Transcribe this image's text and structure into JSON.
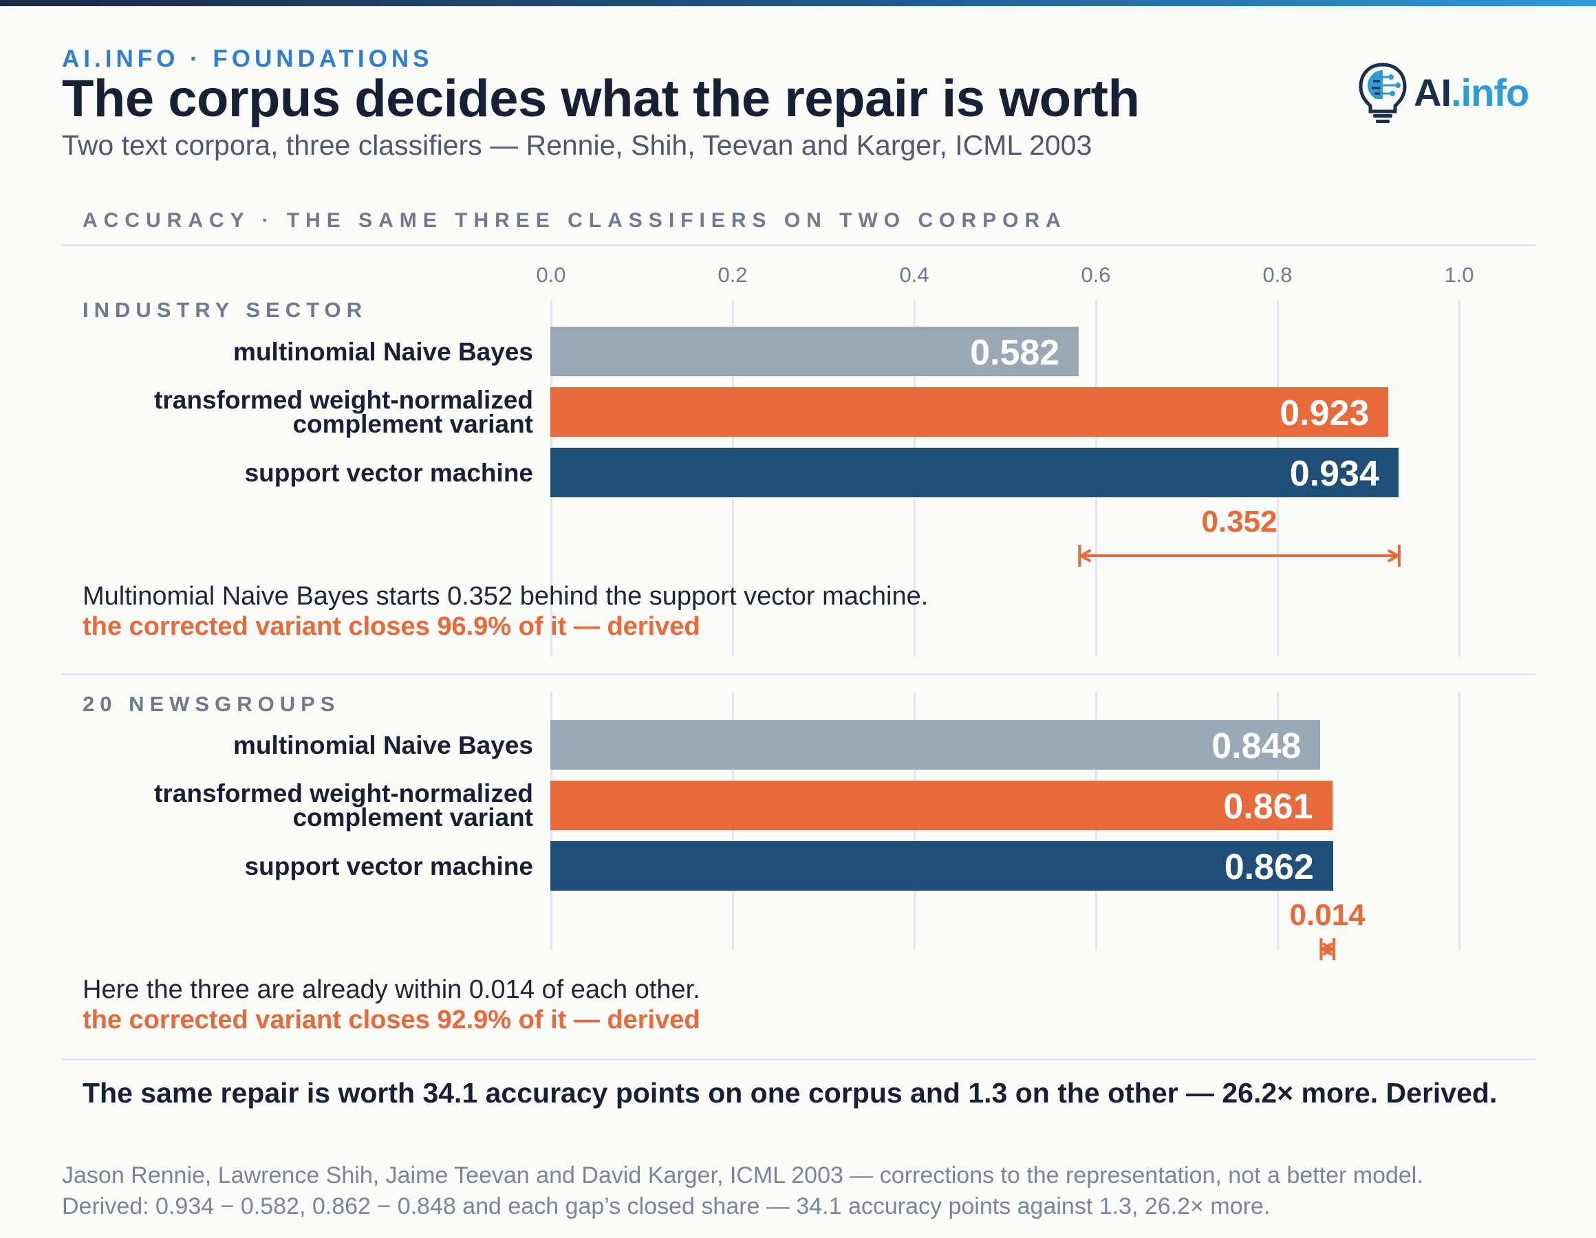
{
  "header": {
    "kicker": "AI.INFO · FOUNDATIONS",
    "title": "The corpus decides what the repair is worth",
    "subtitle": "Two text corpora, three classifiers — Rennie, Shih, Teevan and Karger, ICML 2003",
    "logo_text_main": "AI",
    "logo_text_accent": ".info"
  },
  "chart_data": {
    "type": "bar",
    "orientation": "horizontal",
    "title": "ACCURACY · THE SAME THREE CLASSIFIERS ON TWO CORPORA",
    "xlim": [
      0,
      1
    ],
    "ticks": [
      "0.0",
      "0.2",
      "0.4",
      "0.6",
      "0.8",
      "1.0"
    ],
    "grid": true,
    "groups": [
      {
        "name": "INDUSTRY SECTOR",
        "bars": [
          {
            "label_lines": [
              "multinomial Naive Bayes"
            ],
            "value": 0.582,
            "value_label": "0.582",
            "color": "#9aa7b4"
          },
          {
            "label_lines": [
              "transformed weight-normalized",
              "complement variant"
            ],
            "value": 0.923,
            "value_label": "0.923",
            "color": "#e8693a"
          },
          {
            "label_lines": [
              "support vector machine"
            ],
            "value": 0.934,
            "value_label": "0.934",
            "color": "#1f4e78"
          }
        ],
        "gap": {
          "from": 0.582,
          "to": 0.934,
          "label": "0.352"
        },
        "note": "Multinomial Naive Bayes starts 0.352 behind the support vector machine.",
        "note_derived": "the corrected variant closes 96.9% of it — derived"
      },
      {
        "name": "20 NEWSGROUPS",
        "bars": [
          {
            "label_lines": [
              "multinomial Naive Bayes"
            ],
            "value": 0.848,
            "value_label": "0.848",
            "color": "#9aa7b4"
          },
          {
            "label_lines": [
              "transformed weight-normalized",
              "complement variant"
            ],
            "value": 0.861,
            "value_label": "0.861",
            "color": "#e8693a"
          },
          {
            "label_lines": [
              "support vector machine"
            ],
            "value": 0.862,
            "value_label": "0.862",
            "color": "#1f4e78"
          }
        ],
        "gap": {
          "from": 0.848,
          "to": 0.862,
          "label": "0.014"
        },
        "note": "Here the three are already within 0.014 of each other.",
        "note_derived": "the corrected variant closes 92.9% of it — derived"
      }
    ]
  },
  "conclusion": "The same repair is worth 34.1 accuracy points on one corpus and 1.3 on the other — 26.2× more. Derived.",
  "source": {
    "line1": "Jason Rennie, Lawrence Shih, Jaime Teevan and David Karger, ICML 2003 — corrections to the representation, not a better model.",
    "line2": "Derived: 0.934 − 0.582, 0.862 − 0.848 and each gap’s closed share — 34.1 accuracy points against 1.3, 26.2× more."
  },
  "colors": {
    "accent": "#e8693a",
    "navy": "#1f4e78",
    "gray_bar": "#9aa7b4",
    "kicker": "#2d7fd3"
  }
}
